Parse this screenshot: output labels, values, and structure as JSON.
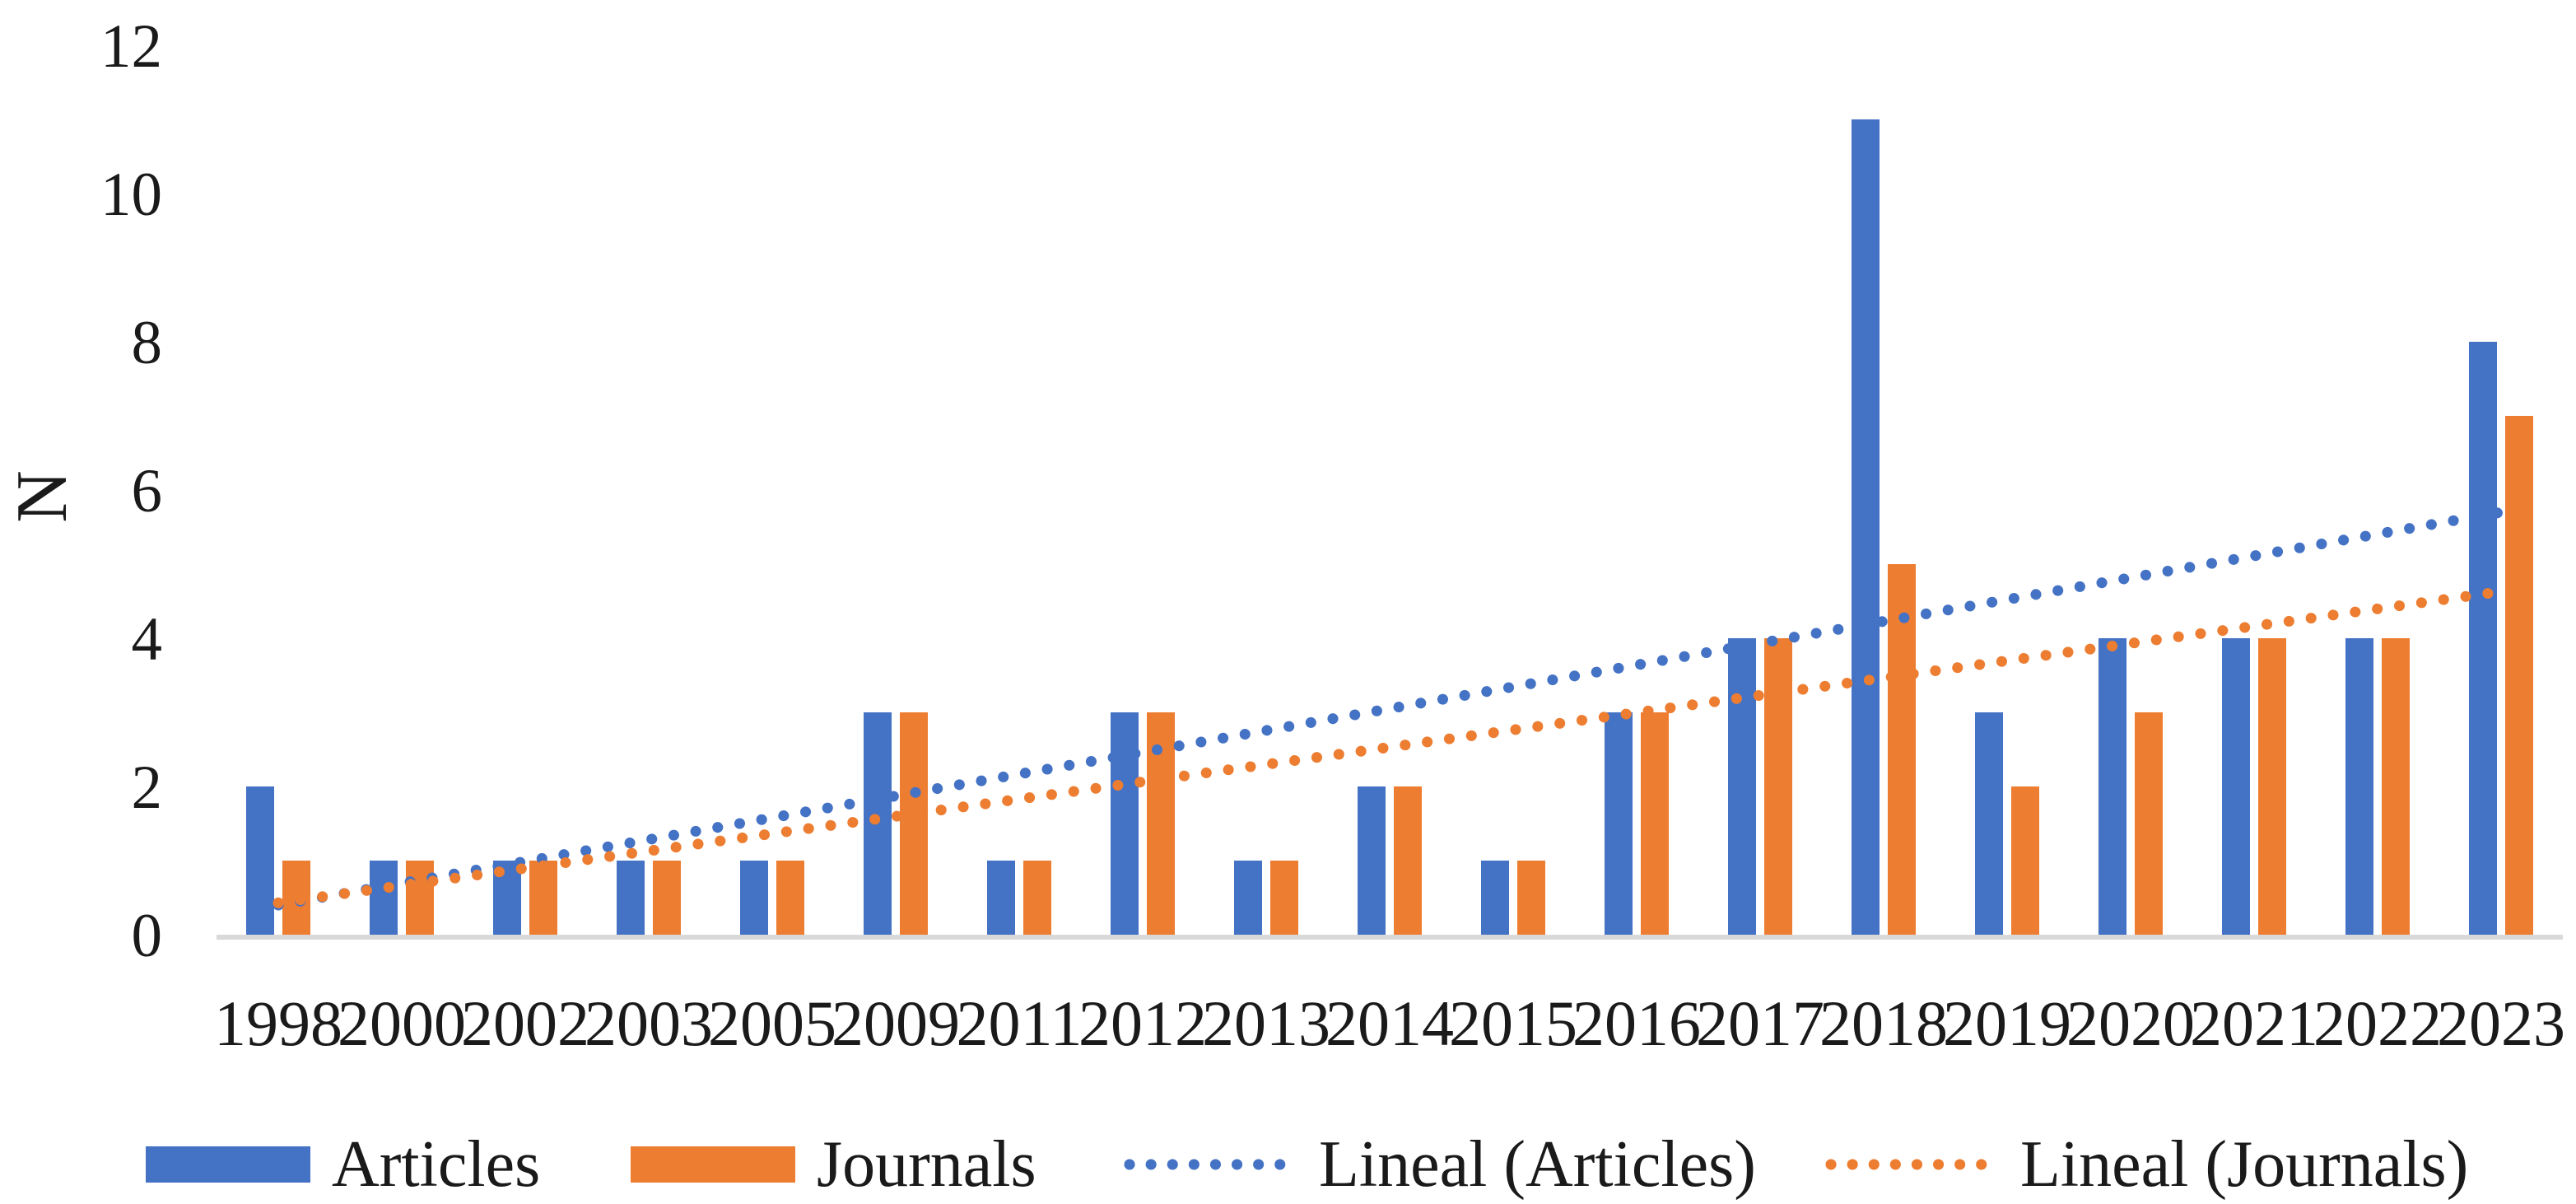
{
  "chart_data": {
    "type": "bar",
    "ylabel": "N",
    "categories": [
      "1998",
      "2000",
      "2002",
      "2003",
      "2005",
      "2009",
      "2011",
      "2012",
      "2013",
      "2014",
      "2015",
      "2016",
      "2017",
      "2018",
      "2019",
      "2020",
      "2021",
      "2022",
      "2023"
    ],
    "series": [
      {
        "name": "Articles",
        "color": "#4472C4",
        "values": [
          2,
          1,
          1,
          1,
          1,
          3,
          1,
          3,
          1,
          2,
          1,
          3,
          4,
          11,
          3,
          4,
          4,
          4,
          8
        ]
      },
      {
        "name": "Journals",
        "color": "#ED7D31",
        "values": [
          1,
          1,
          1,
          1,
          1,
          3,
          1,
          3,
          1,
          2,
          1,
          3,
          4,
          5,
          2,
          3,
          4,
          4,
          7
        ]
      }
    ],
    "trendlines": [
      {
        "name": "Lineal (Articles)",
        "color": "#4472C4",
        "start": 0.4,
        "end": 5.7
      },
      {
        "name": "Lineal (Journals)",
        "color": "#ED7D31",
        "start": 0.43,
        "end": 4.63
      }
    ],
    "y_ticks": [
      0,
      2,
      4,
      6,
      8,
      10,
      12
    ],
    "ylim": [
      0,
      12
    ],
    "grid": false,
    "legend_position": "bottom",
    "axis_line_color": "#D9D9D9"
  }
}
